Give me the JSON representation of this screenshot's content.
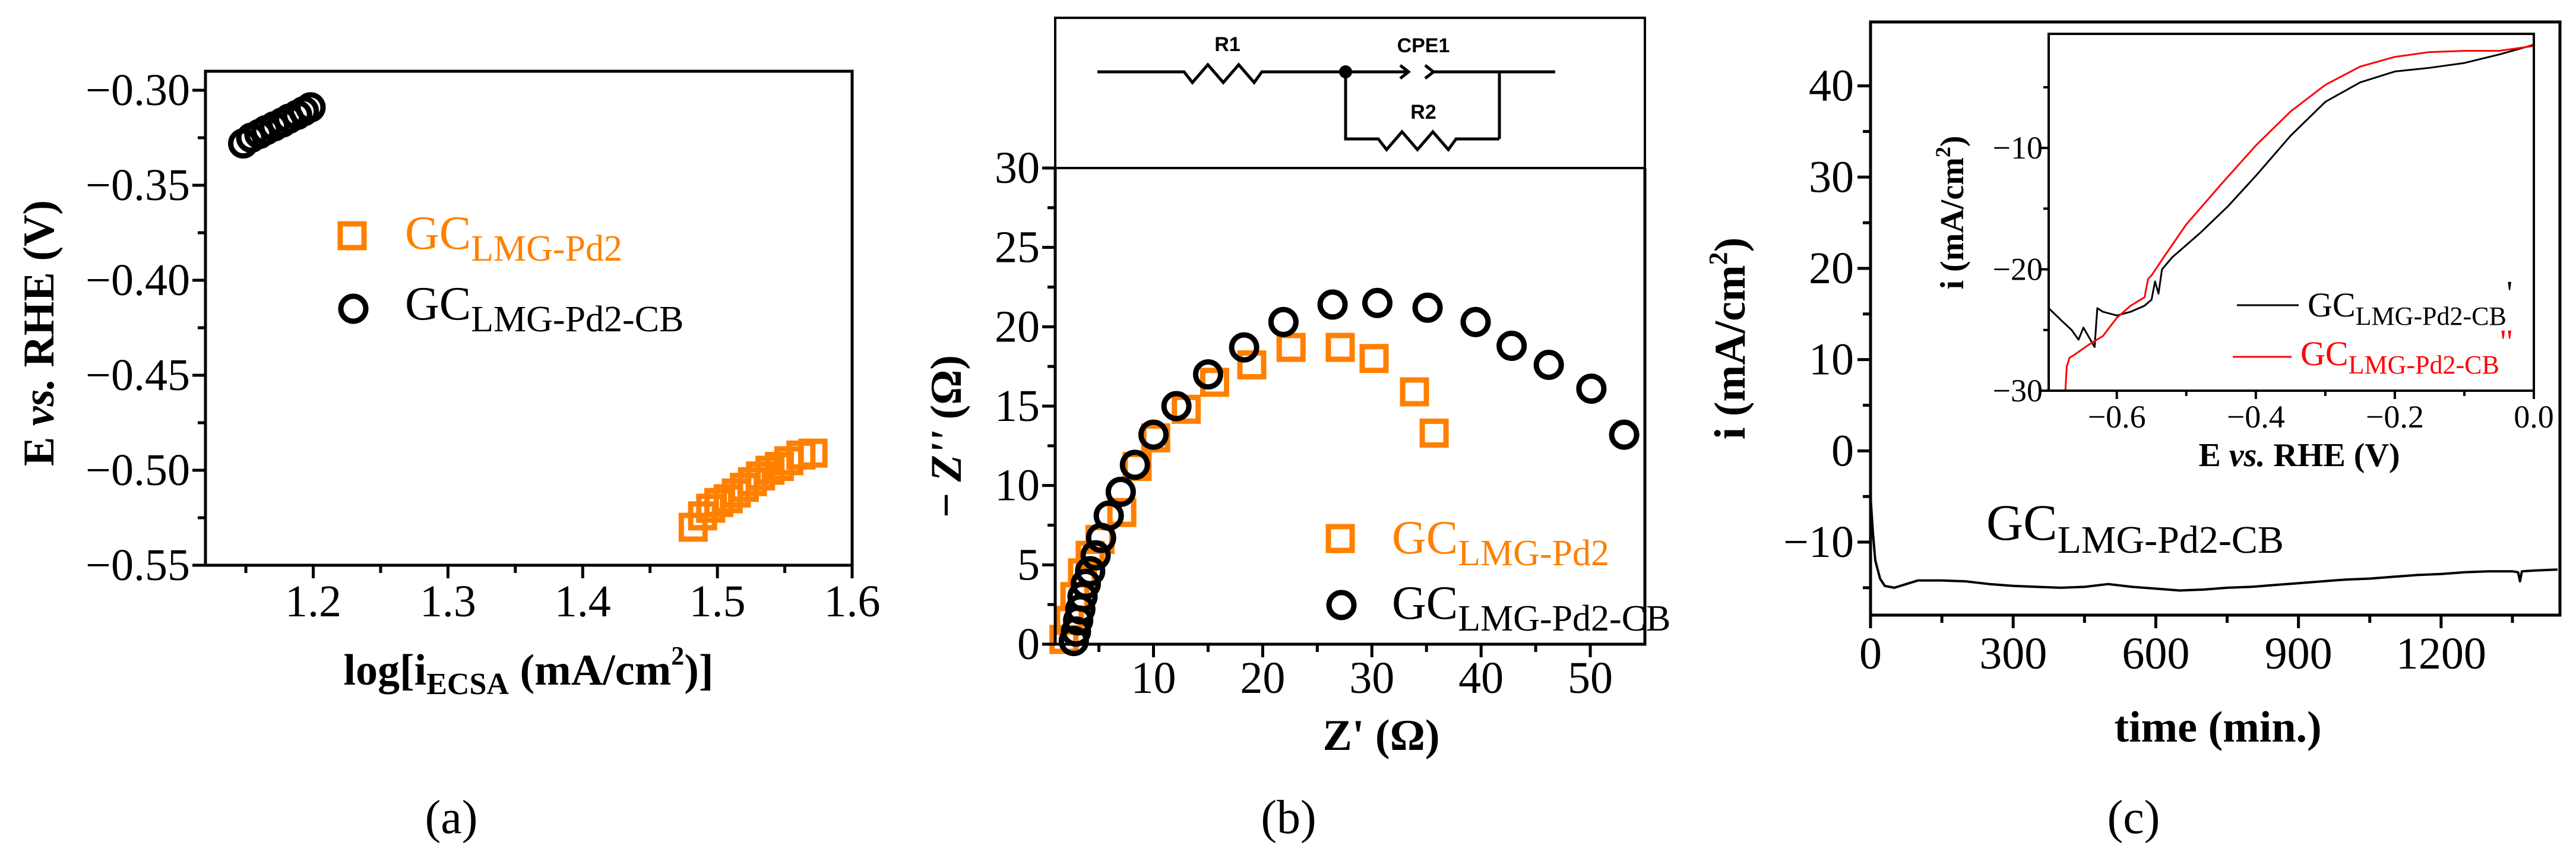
{
  "colors": {
    "orange": "#FF8000",
    "black": "#000000",
    "red": "#FF0000",
    "blue": "#0000FF"
  },
  "chart_data": [
    {
      "panel": "(a)",
      "type": "scatter",
      "xlabel": {
        "pre": "log[i",
        "sub": "ECSA",
        "mid": " (mA/cm",
        "sup": "2",
        "post": ")]"
      },
      "ylabel": {
        "pre": "E ",
        "ital": "vs.",
        "post": " RHE (V)"
      },
      "xlim": [
        1.12,
        1.6
      ],
      "ylim": [
        -0.55,
        -0.29
      ],
      "xticks": [
        1.2,
        1.3,
        1.4,
        1.5,
        1.6
      ],
      "xtick_labels": [
        "1.2",
        "1.3",
        "1.4",
        "1.5",
        "1.6"
      ],
      "xminor": [
        1.15,
        1.25,
        1.35,
        1.45,
        1.55
      ],
      "yticks": [
        -0.3,
        -0.35,
        -0.4,
        -0.45,
        -0.5,
        -0.55
      ],
      "ytick_labels": [
        "−0.30",
        "−0.35",
        "−0.40",
        "−0.45",
        "−0.50",
        "−0.55"
      ],
      "yminor": [
        -0.325,
        -0.375,
        -0.425,
        -0.475,
        -0.525
      ],
      "grid": false,
      "legend_position": "center",
      "series": [
        {
          "name": "GC",
          "name_sub": "LMG-Pd2",
          "marker": "square",
          "color": "#FF8000",
          "x": [
            1.482,
            1.489,
            1.495,
            1.501,
            1.508,
            1.514,
            1.52,
            1.526,
            1.532,
            1.539,
            1.546,
            1.553,
            1.562,
            1.571
          ],
          "y": [
            -0.53,
            -0.524,
            -0.52,
            -0.517,
            -0.515,
            -0.512,
            -0.509,
            -0.506,
            -0.503,
            -0.5,
            -0.498,
            -0.495,
            -0.492,
            -0.491
          ]
        },
        {
          "name": "GC",
          "name_sub": "LMG-Pd2-CB",
          "marker": "circle",
          "color": "#000000",
          "x": [
            1.148,
            1.154,
            1.16,
            1.165,
            1.171,
            1.177,
            1.182,
            1.188,
            1.193,
            1.198
          ],
          "y": [
            -0.328,
            -0.325,
            -0.323,
            -0.321,
            -0.319,
            -0.317,
            -0.315,
            -0.313,
            -0.311,
            -0.309
          ]
        }
      ]
    },
    {
      "panel": "(b)",
      "type": "scatter",
      "xlabel": {
        "pre": "Z' (Ω)"
      },
      "ylabel": {
        "pre": "− ",
        "ital": "Z''",
        "post": " (Ω)"
      },
      "xlim": [
        1,
        55
      ],
      "ylim": [
        0,
        30
      ],
      "xticks": [
        10,
        20,
        30,
        40,
        50
      ],
      "xtick_labels": [
        "10",
        "20",
        "30",
        "40",
        "50"
      ],
      "xminor": [
        5,
        15,
        25,
        35,
        45
      ],
      "yticks": [
        0,
        5,
        10,
        15,
        20,
        25,
        30
      ],
      "ytick_labels": [
        "0",
        "5",
        "10",
        "15",
        "20",
        "25",
        "30"
      ],
      "yminor": [
        2.5,
        7.5,
        12.5,
        17.5,
        22.5,
        27.5
      ],
      "grid": false,
      "legend_position": "bottom-right",
      "circuit": {
        "r1": "R1",
        "cpe": "CPE1",
        "r2": "R2"
      },
      "series": [
        {
          "name": "GC",
          "name_sub": "LMG-Pd2",
          "marker": "square",
          "color": "#FF8000",
          "x": [
            1.8,
            2.3,
            2.8,
            3.5,
            4.2,
            5.1,
            7.1,
            8.5,
            10.2,
            13.0,
            15.6,
            19.0,
            22.6,
            27.1,
            30.2,
            33.9,
            35.7
          ],
          "y": [
            0.3,
            1.5,
            3.0,
            4.5,
            5.6,
            6.6,
            8.3,
            11.2,
            13.0,
            14.8,
            16.5,
            17.6,
            18.7,
            18.7,
            18.0,
            15.9,
            13.3
          ]
        },
        {
          "name": "GC",
          "name_sub": "LMG-Pd2-CB",
          "marker": "circle",
          "color": "#000000",
          "x": [
            2.7,
            2.9,
            3.1,
            3.3,
            3.5,
            3.8,
            4.2,
            4.7,
            5.2,
            5.9,
            7.0,
            8.3,
            10.0,
            12.1,
            15.0,
            18.3,
            21.9,
            26.4,
            30.5,
            35.1,
            39.5,
            42.8,
            46.2,
            50.1,
            53.1
          ],
          "y": [
            0.2,
            0.8,
            1.5,
            2.2,
            3.0,
            3.8,
            4.6,
            5.6,
            6.7,
            8.1,
            9.6,
            11.3,
            13.2,
            15.0,
            17.0,
            18.7,
            20.3,
            21.4,
            21.5,
            21.2,
            20.3,
            18.8,
            17.6,
            16.1,
            13.2
          ]
        }
      ]
    },
    {
      "panel": "(c)",
      "type": "line",
      "xlabel": {
        "pre": "time (min.)"
      },
      "ylabel": {
        "pre": "i (mA/cm",
        "sup": "2",
        "post": ")"
      },
      "xlim": [
        0,
        1450
      ],
      "ylim": [
        -18,
        47
      ],
      "xticks": [
        0,
        300,
        600,
        900,
        1200
      ],
      "xtick_labels": [
        "0",
        "300",
        "600",
        "900",
        "1200"
      ],
      "xminor": [
        150,
        450,
        750,
        1050,
        1350
      ],
      "yticks": [
        -10,
        0,
        10,
        20,
        30,
        40
      ],
      "ytick_labels": [
        "−10",
        "0",
        "10",
        "20",
        "30",
        "40"
      ],
      "yminor": [
        -15,
        -5,
        5,
        15,
        25,
        35
      ],
      "grid": false,
      "annotation": {
        "main": "GC",
        "sub": "LMG-Pd2-CB"
      },
      "series": [
        {
          "color": "#000000",
          "x": [
            0,
            5,
            10,
            20,
            30,
            50,
            75,
            100,
            150,
            200,
            250,
            300,
            350,
            400,
            450,
            500,
            550,
            600,
            650,
            700,
            750,
            800,
            850,
            900,
            950,
            1000,
            1050,
            1100,
            1150,
            1200,
            1250,
            1300,
            1350,
            1362,
            1366,
            1370,
            1400,
            1445
          ],
          "y": [
            -5,
            -9,
            -12,
            -14,
            -14.8,
            -15,
            -14.6,
            -14.2,
            -14.2,
            -14.3,
            -14.6,
            -14.8,
            -14.9,
            -15,
            -14.9,
            -14.6,
            -14.9,
            -15.1,
            -15.3,
            -15.2,
            -15,
            -14.9,
            -14.7,
            -14.5,
            -14.3,
            -14.1,
            -14,
            -13.8,
            -13.6,
            -13.5,
            -13.3,
            -13.2,
            -13.2,
            -13.3,
            -14.3,
            -13.2,
            -13.1,
            -13.0
          ]
        },
        {
          "color": "#0000FF",
          "x": [
            0,
            0
          ],
          "y": [
            -2,
            -15
          ]
        }
      ]
    },
    {
      "panel": "(c) inset",
      "type": "line",
      "xlabel": {
        "pre": "E ",
        "ital": "vs.",
        "post": " RHE (V)"
      },
      "ylabel": {
        "pre": "i (mA/cm",
        "sup": "2",
        "post": ")"
      },
      "xlim": [
        -0.698,
        0.0
      ],
      "ylim": [
        -30,
        -0.6
      ],
      "xticks": [
        -0.6,
        -0.4,
        -0.2,
        0.0
      ],
      "xtick_labels": [
        "−0.6",
        "−0.4",
        "−0.2",
        "0.0"
      ],
      "xminor": [
        -0.5,
        -0.3,
        -0.1
      ],
      "yticks": [
        -10,
        -20,
        -30
      ],
      "ytick_labels": [
        "−10",
        "−20",
        "−30"
      ],
      "yminor": [
        -5,
        -15,
        -25
      ],
      "grid": false,
      "legend_position": "bottom-right",
      "series": [
        {
          "name": "GC",
          "name_sub": "LMG-Pd2-CB",
          "name_mark": "'",
          "color": "#000000",
          "x": [
            -0.698,
            -0.68,
            -0.665,
            -0.655,
            -0.648,
            -0.64,
            -0.632,
            -0.628,
            -0.62,
            -0.6,
            -0.58,
            -0.56,
            -0.55,
            -0.545,
            -0.54,
            -0.535,
            -0.52,
            -0.48,
            -0.44,
            -0.4,
            -0.35,
            -0.3,
            -0.25,
            -0.2,
            -0.15,
            -0.1,
            -0.05,
            0.0
          ],
          "y": [
            -23.2,
            -24.2,
            -25.0,
            -25.8,
            -24.8,
            -25.6,
            -26.4,
            -23.2,
            -23.5,
            -23.8,
            -23.5,
            -23.0,
            -22.5,
            -21.0,
            -22.0,
            -20.0,
            -19.0,
            -17.0,
            -14.8,
            -12.3,
            -9.0,
            -6.2,
            -4.6,
            -3.7,
            -3.4,
            -3.0,
            -2.3,
            -1.5
          ]
        },
        {
          "name": "GC",
          "name_sub": "LMG-Pd2-CB",
          "name_mark": "\"",
          "color": "#FF0000",
          "x": [
            -0.674,
            -0.672,
            -0.668,
            -0.66,
            -0.64,
            -0.62,
            -0.6,
            -0.58,
            -0.56,
            -0.555,
            -0.55,
            -0.53,
            -0.5,
            -0.45,
            -0.4,
            -0.35,
            -0.3,
            -0.25,
            -0.2,
            -0.15,
            -0.1,
            -0.05,
            0.0
          ],
          "y": [
            -30,
            -28,
            -27.3,
            -27.0,
            -26.2,
            -25.5,
            -24.0,
            -23.0,
            -22.3,
            -20.8,
            -20.5,
            -18.8,
            -16.3,
            -13.0,
            -9.8,
            -7.0,
            -4.8,
            -3.3,
            -2.5,
            -2.1,
            -2.0,
            -2.0,
            -1.6
          ]
        }
      ]
    }
  ]
}
